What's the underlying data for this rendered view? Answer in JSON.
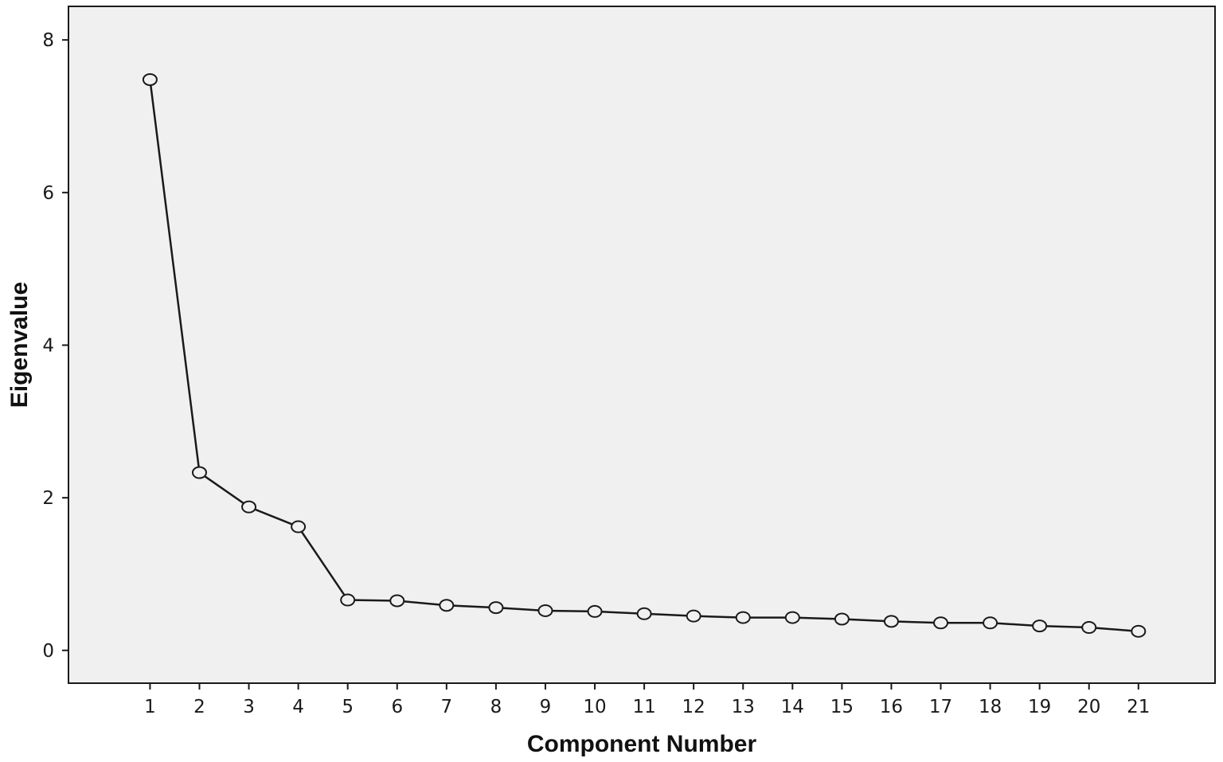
{
  "chart_data": {
    "type": "line",
    "title": "",
    "xlabel": "Component Number",
    "ylabel": "Eigenvalue",
    "x": [
      1,
      2,
      3,
      4,
      5,
      6,
      7,
      8,
      9,
      10,
      11,
      12,
      13,
      14,
      15,
      16,
      17,
      18,
      19,
      20,
      21
    ],
    "x_tick_labels": [
      "1",
      "2",
      "3",
      "4",
      "5",
      "6",
      "7",
      "8",
      "9",
      "10",
      "11",
      "12",
      "13",
      "14",
      "15",
      "16",
      "17",
      "18",
      "19",
      "20",
      "21"
    ],
    "series": [
      {
        "values": [
          7.48,
          2.33,
          1.88,
          1.62,
          0.66,
          0.65,
          0.59,
          0.56,
          0.52,
          0.51,
          0.48,
          0.45,
          0.43,
          0.43,
          0.41,
          0.38,
          0.36,
          0.36,
          0.32,
          0.3,
          0.25
        ]
      }
    ],
    "xlim": [
      -0.65,
      22.55
    ],
    "ylim": [
      -0.43,
      8.44
    ],
    "y_ticks": [
      0,
      2,
      4,
      6,
      8
    ],
    "y_tick_labels": [
      "0",
      "2",
      "4",
      "6",
      "8"
    ],
    "grid": false,
    "legend": "none",
    "colors": {
      "plot_background": "#f0f0f0",
      "line": "#1a1a1a",
      "marker_fill": "#f0f0f0",
      "frame": "#1a1a1a"
    }
  }
}
